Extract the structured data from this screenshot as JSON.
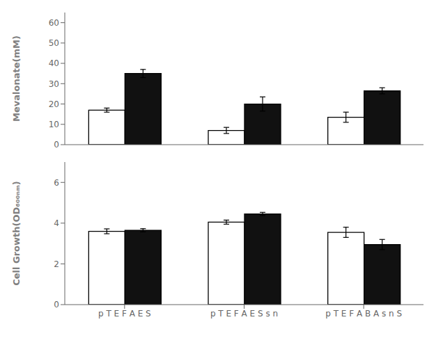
{
  "chart_data": [
    {
      "type": "bar",
      "ylabel": "Mevalonate(mM)",
      "categories": [
        null,
        null,
        null
      ],
      "series": [
        {
          "color": "#ffffff",
          "values": [
            17.0,
            7.0,
            13.5
          ],
          "errors": [
            1.0,
            1.5,
            2.5
          ]
        },
        {
          "color": "#111111",
          "values": [
            35.0,
            20.0,
            26.5
          ],
          "errors": [
            2.0,
            3.5,
            1.5
          ]
        }
      ],
      "ylim": [
        0,
        65
      ],
      "yticks": [
        0,
        10,
        20,
        30,
        40,
        50,
        60
      ],
      "tick_labels": "y"
    },
    {
      "type": "bar",
      "ylabel": "Cell Growth(OD₆₀₀ₙₘ)",
      "categories": [
        "p T E F A E S",
        "p T E F A E S s n",
        "p T E F A B A s n S"
      ],
      "series": [
        {
          "color": "#ffffff",
          "values": [
            3.6,
            4.05,
            3.55
          ],
          "errors": [
            0.12,
            0.1,
            0.25
          ]
        },
        {
          "color": "#111111",
          "values": [
            3.65,
            4.45,
            2.95
          ],
          "errors": [
            0.08,
            0.08,
            0.25
          ]
        }
      ],
      "ylim": [
        0,
        7
      ],
      "yticks": [
        0,
        2,
        4,
        6
      ]
    }
  ]
}
